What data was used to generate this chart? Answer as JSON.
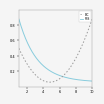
{
  "title": "",
  "x_min": 1,
  "x_max": 10,
  "bic_color": "#999999",
  "rss_color": "#88ccdd",
  "background_color": "#f5f5f5",
  "legend_labels": [
    "BIC",
    "RSS"
  ],
  "ylim": [
    0,
    1.0
  ],
  "xticks": [
    2,
    4,
    6,
    8,
    10
  ],
  "yticks": [
    0.2,
    0.4,
    0.6,
    0.8
  ]
}
